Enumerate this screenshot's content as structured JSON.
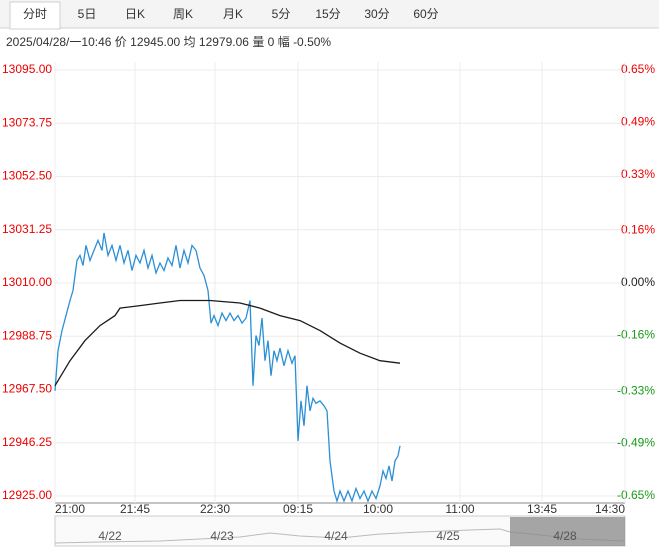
{
  "tabs": [
    "分时",
    "5日",
    "日K",
    "周K",
    "月K",
    "5分",
    "15分",
    "30分",
    "60分"
  ],
  "active_tab": 0,
  "info": {
    "time": "2025/04/28/一10:46",
    "price_label": "价",
    "price": "12945.00",
    "avg_label": "均",
    "avg": "12979.06",
    "vol_label": "量",
    "vol": "0",
    "range_label": "幅",
    "range": "-0.50%"
  },
  "chart_data": {
    "type": "line",
    "ylim": [
      12925,
      13095
    ],
    "yticks": [
      {
        "value": 13095,
        "label": "13095.00"
      },
      {
        "value": 13073.75,
        "label": "13073.75"
      },
      {
        "value": 13052.5,
        "label": "13052.50"
      },
      {
        "value": 13031.25,
        "label": "13031.25"
      },
      {
        "value": 13010,
        "label": "13010.00"
      },
      {
        "value": 12988.75,
        "label": "12988.75"
      },
      {
        "value": 12967.5,
        "label": "12967.50"
      },
      {
        "value": 12946.25,
        "label": "12946.25"
      },
      {
        "value": 12925,
        "label": "12925.00"
      }
    ],
    "y2lim": [
      -0.65,
      0.65
    ],
    "y2ticks": [
      {
        "value": 0.65,
        "label": "0.65%"
      },
      {
        "value": 0.49,
        "label": "0.49%"
      },
      {
        "value": 0.33,
        "label": "0.33%"
      },
      {
        "value": 0.16,
        "label": "0.16%"
      },
      {
        "value": 0,
        "label": "0.00%"
      },
      {
        "value": -0.16,
        "label": "-0.16%"
      },
      {
        "value": -0.33,
        "label": "-0.33%"
      },
      {
        "value": -0.49,
        "label": "-0.49%"
      },
      {
        "value": -0.65,
        "label": "-0.65%"
      }
    ],
    "xlim": [
      0,
      570
    ],
    "xticks": [
      {
        "value": 0,
        "label": "21:00"
      },
      {
        "value": 80,
        "label": "21:45"
      },
      {
        "value": 160,
        "label": "22:30"
      },
      {
        "value": 243,
        "label": "09:15"
      },
      {
        "value": 323,
        "label": "10:00"
      },
      {
        "value": 405,
        "label": "11:00"
      },
      {
        "value": 487,
        "label": "13:45"
      },
      {
        "value": 570,
        "label": "14:30"
      }
    ],
    "grid": true,
    "series": [
      {
        "color": "#2b8fd6",
        "x": [
          0,
          3,
          7,
          11,
          15,
          18,
          22,
          25,
          28,
          31,
          35,
          39,
          43,
          47,
          49,
          53,
          57,
          61,
          65,
          69,
          73,
          77,
          81,
          85,
          89,
          93,
          97,
          101,
          105,
          109,
          113,
          117,
          121,
          125,
          129,
          133,
          137,
          141,
          145,
          149,
          153,
          156,
          159,
          163,
          167,
          171,
          175,
          179,
          183,
          187,
          191,
          195,
          198,
          201,
          204,
          207,
          210,
          213,
          216,
          219,
          222,
          225,
          229,
          233,
          237,
          240,
          243,
          246,
          249,
          252,
          255,
          258,
          261,
          265,
          269,
          272,
          275,
          279,
          282,
          285,
          289,
          293,
          297,
          301,
          305,
          309,
          313,
          317,
          321,
          325,
          328,
          331,
          334,
          337,
          340,
          343,
          345
        ],
        "values": [
          12967,
          12983,
          12991,
          12997,
          13003,
          13007,
          13019,
          13021,
          13017,
          13025,
          13019,
          13023,
          13027,
          13023,
          13030,
          13021,
          13025,
          13019,
          13025,
          13018,
          13023,
          13015,
          13021,
          13018,
          13023,
          13016,
          13021,
          13014,
          13018,
          13015,
          13020,
          13017,
          13025,
          13016,
          13023,
          13018,
          13025,
          13023,
          13016,
          13013,
          13007,
          12994,
          12997,
          12993,
          12998,
          12995,
          12998,
          12995,
          12997,
          12994,
          12996,
          13003,
          12969,
          12989,
          12985,
          12996,
          12979,
          12987,
          12973,
          12983,
          12979,
          12984,
          12977,
          12983,
          12978,
          12981,
          12947,
          12963,
          12953,
          12969,
          12959,
          12964,
          12962,
          12963,
          12961,
          12959,
          12939,
          12927,
          12923,
          12927,
          12923,
          12927,
          12923,
          12928,
          12924,
          12927,
          12923,
          12927,
          12924,
          12929,
          12935,
          12932,
          12937,
          12931,
          12939,
          12941,
          12945
        ]
      },
      {
        "color": "#1a1a1a",
        "x": [
          0,
          15,
          30,
          45,
          60,
          65,
          85,
          105,
          125,
          155,
          185,
          205,
          225,
          245,
          265,
          285,
          305,
          325,
          345
        ],
        "values": [
          12969,
          12979,
          12987,
          12993,
          12997,
          13000,
          13001,
          13002,
          13003,
          13003,
          13002,
          13000,
          12997,
          12995,
          12991,
          12986,
          12982,
          12979,
          12978
        ]
      }
    ]
  },
  "navigator": {
    "dates": [
      "4/22",
      "4/23",
      "4/24",
      "4/25",
      "4/28"
    ]
  }
}
